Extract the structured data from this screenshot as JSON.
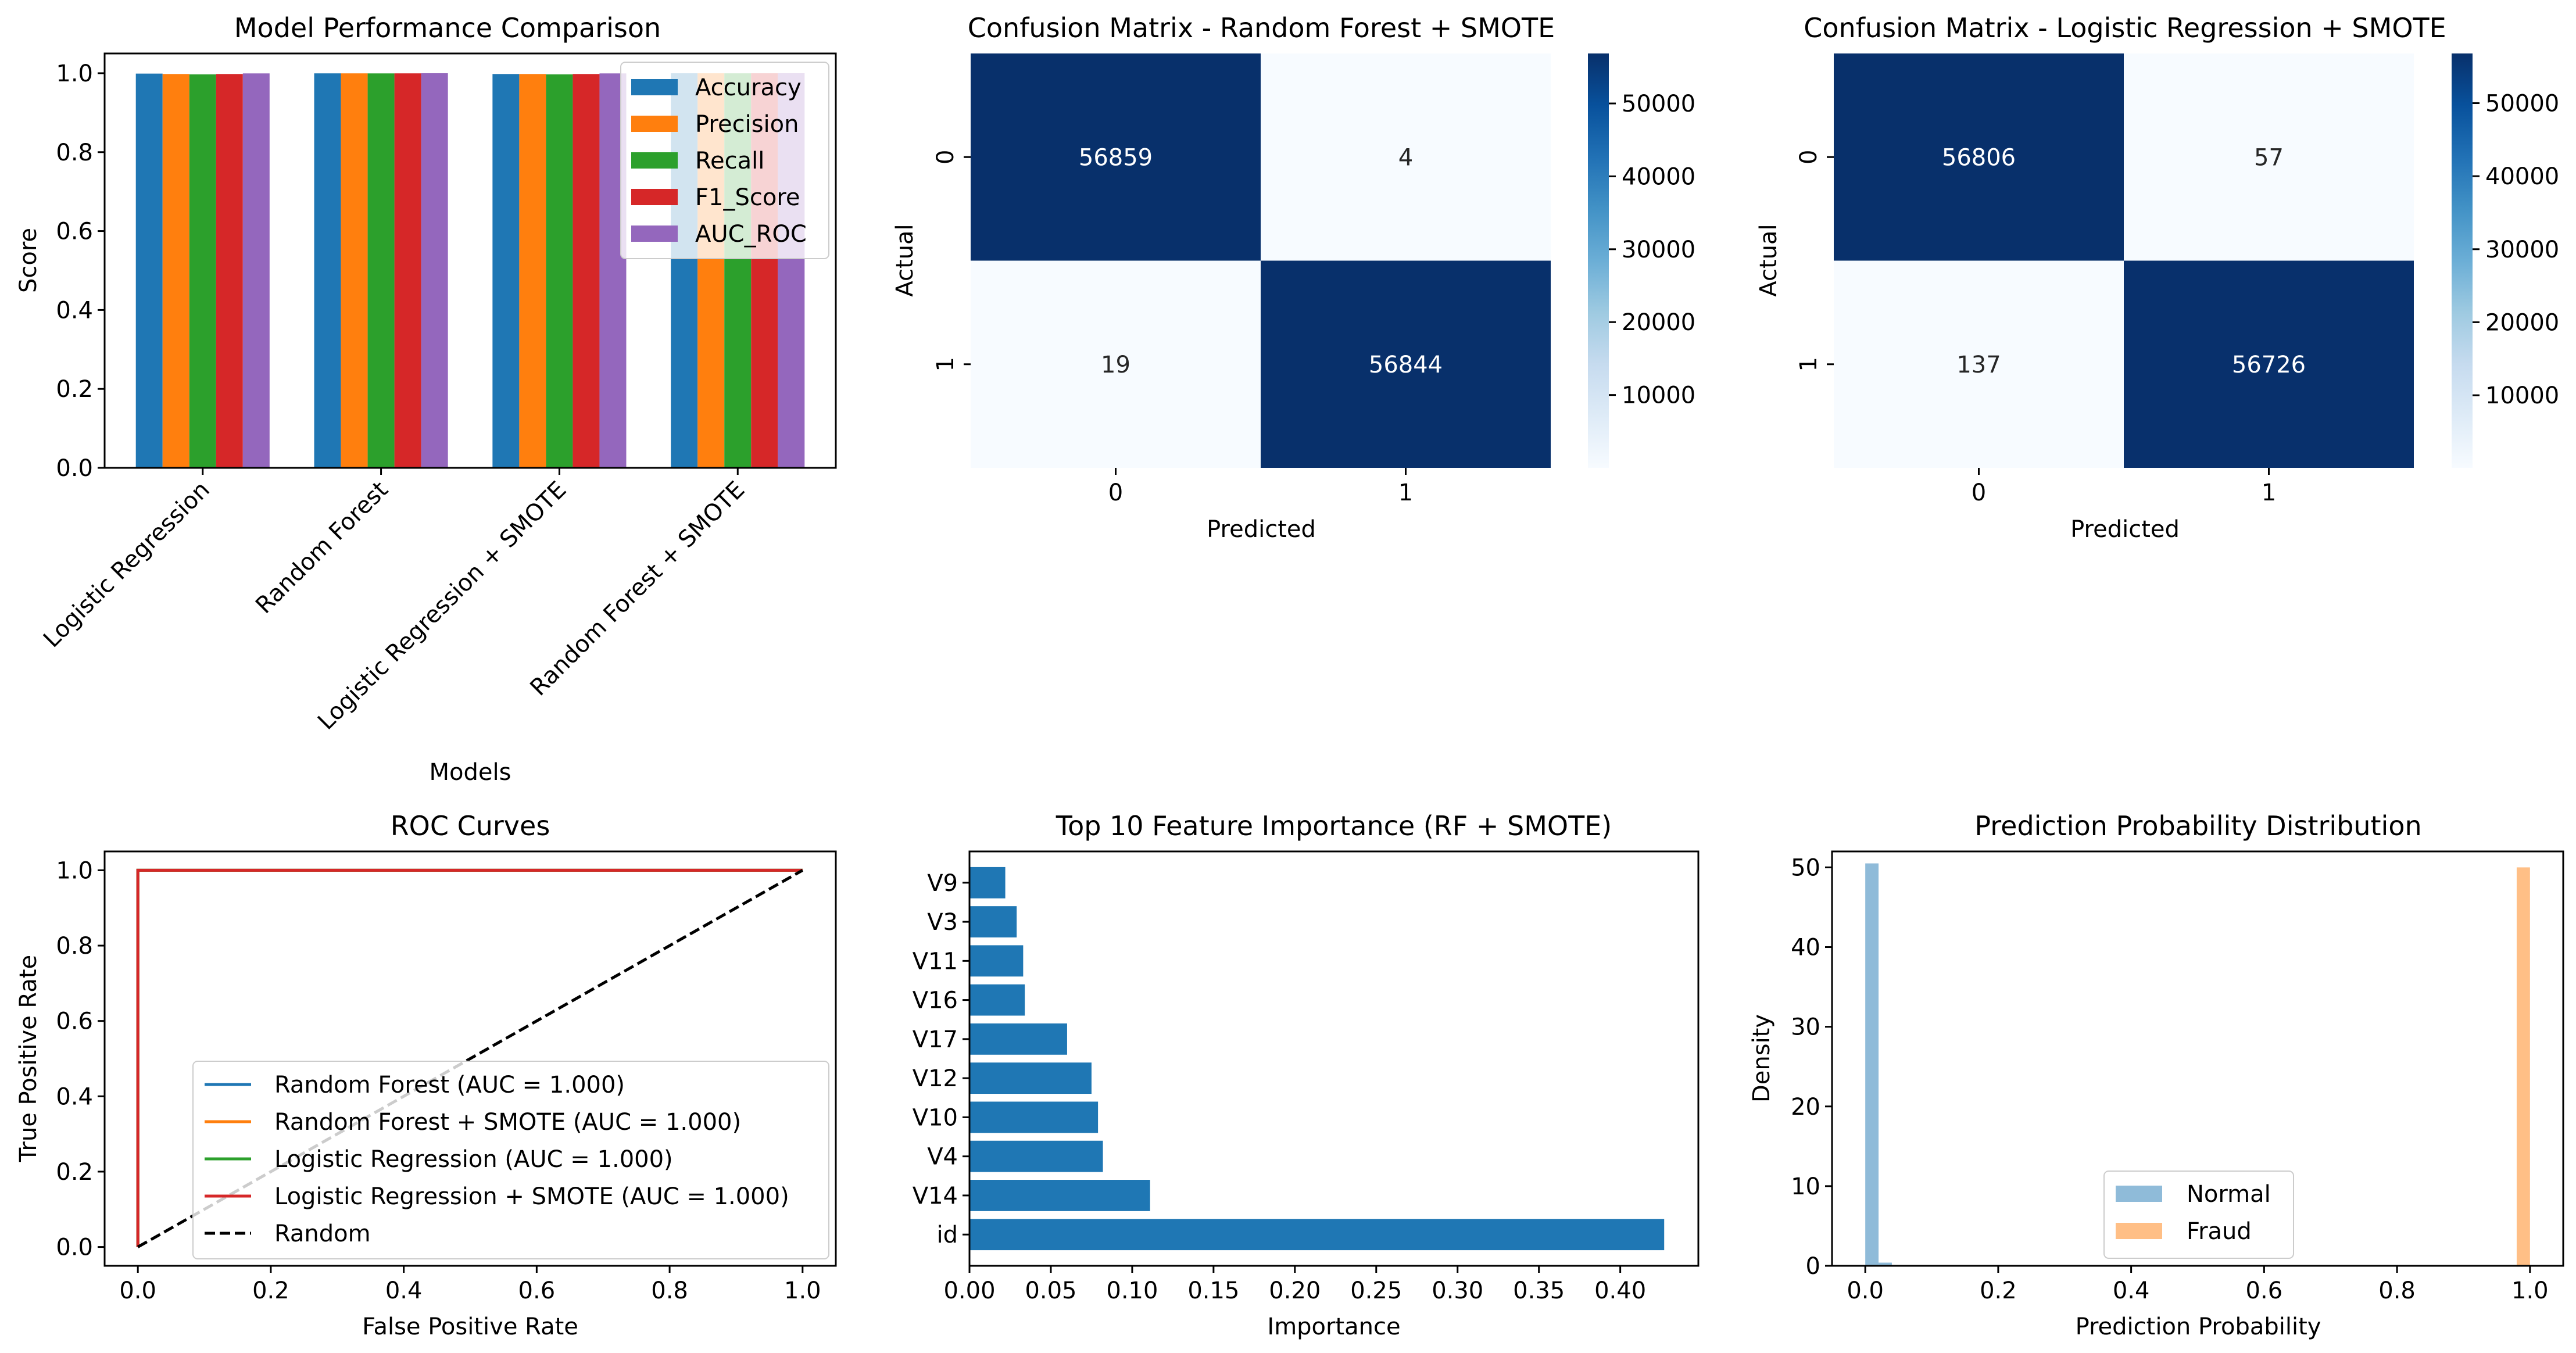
{
  "chart_data": [
    {
      "type": "bar",
      "title": "Model Performance Comparison",
      "xlabel": "Models",
      "ylabel": "Score",
      "ylim": [
        0,
        1.05
      ],
      "yticks": [
        "0.0",
        "0.2",
        "0.4",
        "0.6",
        "0.8",
        "1.0"
      ],
      "categories": [
        "Logistic Regression",
        "Random Forest",
        "Logistic Regression + SMOTE",
        "Random Forest + SMOTE"
      ],
      "series": [
        {
          "name": "Accuracy",
          "color": "#1f77b4",
          "values": [
            0.999,
            0.9996,
            0.998,
            0.9998
          ]
        },
        {
          "name": "Precision",
          "color": "#ff7f0e",
          "values": [
            0.998,
            0.9996,
            0.998,
            0.9998
          ]
        },
        {
          "name": "Recall",
          "color": "#2ca02c",
          "values": [
            0.997,
            0.9995,
            0.997,
            0.9997
          ]
        },
        {
          "name": "F1_Score",
          "color": "#d62728",
          "values": [
            0.998,
            0.9996,
            0.998,
            0.9998
          ]
        },
        {
          "name": "AUC_ROC",
          "color": "#9467bd",
          "values": [
            0.9995,
            0.9999,
            0.9995,
            0.9999
          ]
        }
      ],
      "legend": "top-right"
    },
    {
      "type": "heatmap",
      "title": "Confusion Matrix - Random Forest + SMOTE",
      "xlabel": "Predicted",
      "ylabel": "Actual",
      "xticks": [
        "0",
        "1"
      ],
      "yticks": [
        "0",
        "1"
      ],
      "cells": [
        [
          56859,
          4
        ],
        [
          19,
          56844
        ]
      ],
      "colorbar_ticks": [
        "10000",
        "20000",
        "30000",
        "40000",
        "50000"
      ],
      "colorbar_range": [
        4,
        56859
      ],
      "colormap": "Blues"
    },
    {
      "type": "heatmap",
      "title": "Confusion Matrix - Logistic Regression + SMOTE",
      "xlabel": "Predicted",
      "ylabel": "Actual",
      "xticks": [
        "0",
        "1"
      ],
      "yticks": [
        "0",
        "1"
      ],
      "cells": [
        [
          56806,
          57
        ],
        [
          137,
          56726
        ]
      ],
      "colorbar_ticks": [
        "10000",
        "20000",
        "30000",
        "40000",
        "50000"
      ],
      "colorbar_range": [
        57,
        56806
      ],
      "colormap": "Blues"
    },
    {
      "type": "line",
      "title": "ROC Curves",
      "xlabel": "False Positive Rate",
      "ylabel": "True Positive Rate",
      "xlim": [
        -0.05,
        1.05
      ],
      "ylim": [
        -0.05,
        1.05
      ],
      "xticks": [
        "0.0",
        "0.2",
        "0.4",
        "0.6",
        "0.8",
        "1.0"
      ],
      "yticks": [
        "0.0",
        "0.2",
        "0.4",
        "0.6",
        "0.8",
        "1.0"
      ],
      "series": [
        {
          "name": "Random Forest (AUC = 1.000)",
          "color": "#1f77b4",
          "x": [
            0,
            0,
            1
          ],
          "y": [
            0,
            1,
            1
          ]
        },
        {
          "name": "Random Forest + SMOTE (AUC = 1.000)",
          "color": "#ff7f0e",
          "x": [
            0,
            0,
            1
          ],
          "y": [
            0,
            1,
            1
          ]
        },
        {
          "name": "Logistic Regression (AUC = 1.000)",
          "color": "#2ca02c",
          "x": [
            0,
            0,
            1
          ],
          "y": [
            0,
            1,
            1
          ]
        },
        {
          "name": "Logistic Regression + SMOTE (AUC = 1.000)",
          "color": "#d62728",
          "x": [
            0,
            0,
            1
          ],
          "y": [
            0,
            1,
            1
          ]
        },
        {
          "name": "Random",
          "color": "#000000",
          "dashed": true,
          "x": [
            0,
            1
          ],
          "y": [
            0,
            1
          ]
        }
      ],
      "legend": "lower-right"
    },
    {
      "type": "bar",
      "orientation": "horizontal",
      "title": "Top 10 Feature Importance (RF + SMOTE)",
      "xlabel": "Importance",
      "xlim": [
        0,
        0.448
      ],
      "xticks": [
        "0.00",
        "0.05",
        "0.10",
        "0.15",
        "0.20",
        "0.25",
        "0.30",
        "0.35",
        "0.40"
      ],
      "categories": [
        "id",
        "V14",
        "V4",
        "V10",
        "V12",
        "V17",
        "V16",
        "V11",
        "V3",
        "V9"
      ],
      "values": [
        0.427,
        0.111,
        0.082,
        0.079,
        0.075,
        0.06,
        0.034,
        0.033,
        0.029,
        0.022
      ],
      "color": "#1f77b4"
    },
    {
      "type": "bar",
      "subtype": "histogram",
      "title": "Prediction Probability Distribution",
      "xlabel": "Prediction Probability",
      "ylabel": "Density",
      "xlim": [
        -0.05,
        1.05
      ],
      "ylim": [
        0,
        52
      ],
      "xticks": [
        "0.0",
        "0.2",
        "0.4",
        "0.6",
        "0.8",
        "1.0"
      ],
      "yticks": [
        "0",
        "10",
        "20",
        "30",
        "40",
        "50"
      ],
      "series": [
        {
          "name": "Normal",
          "color": "#8fbbd9",
          "bins": [
            {
              "x0": 0.0,
              "x1": 0.02,
              "density": 50.5
            },
            {
              "x0": 0.02,
              "x1": 0.04,
              "density": 0.4
            }
          ]
        },
        {
          "name": "Fraud",
          "color": "#ffbf86",
          "bins": [
            {
              "x0": 0.98,
              "x1": 1.0,
              "density": 50
            }
          ]
        }
      ],
      "legend": "lower-center"
    }
  ]
}
